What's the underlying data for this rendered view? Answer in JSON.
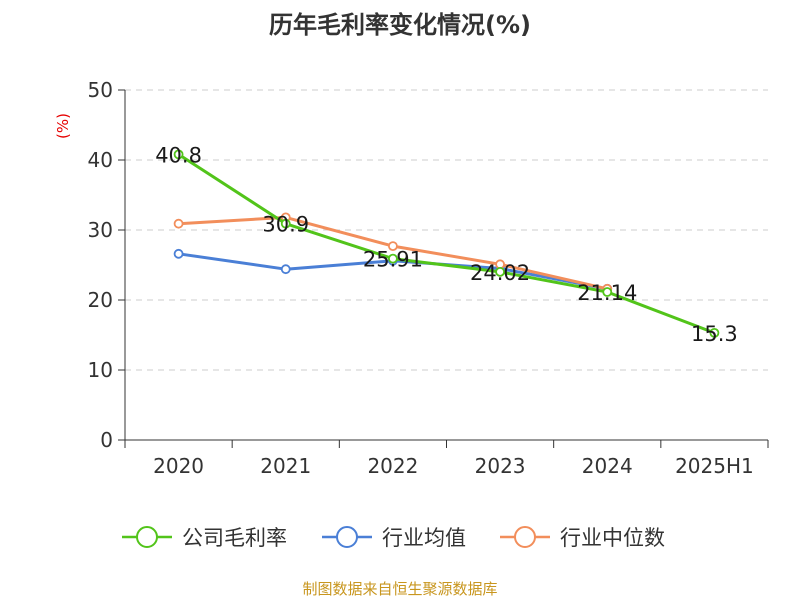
{
  "chart_data": {
    "type": "line",
    "title": "历年毛利率变化情况(%)",
    "ylabel": "(%)",
    "categories": [
      "2020",
      "2021",
      "2022",
      "2023",
      "2024",
      "2025H1"
    ],
    "ylim": [
      0,
      50
    ],
    "yticks": [
      0,
      10,
      20,
      30,
      40,
      50
    ],
    "grid": true,
    "legend_position": "bottom",
    "series": [
      {
        "name": "公司毛利率",
        "color": "#52c41a",
        "values": [
          40.8,
          30.9,
          25.91,
          24.02,
          21.14,
          15.3
        ],
        "labels": [
          "40.8",
          "30.9",
          "25.91",
          "24.02",
          "21.14",
          "15.3"
        ]
      },
      {
        "name": "行业均值",
        "color": "#4a7fd6",
        "values": [
          26.6,
          24.4,
          25.6,
          24.5,
          21.6,
          null
        ]
      },
      {
        "name": "行业中位数",
        "color": "#f28e5b",
        "values": [
          30.9,
          31.8,
          27.7,
          25.1,
          21.6,
          null
        ]
      }
    ]
  },
  "source": "制图数据来自恒生聚源数据库"
}
